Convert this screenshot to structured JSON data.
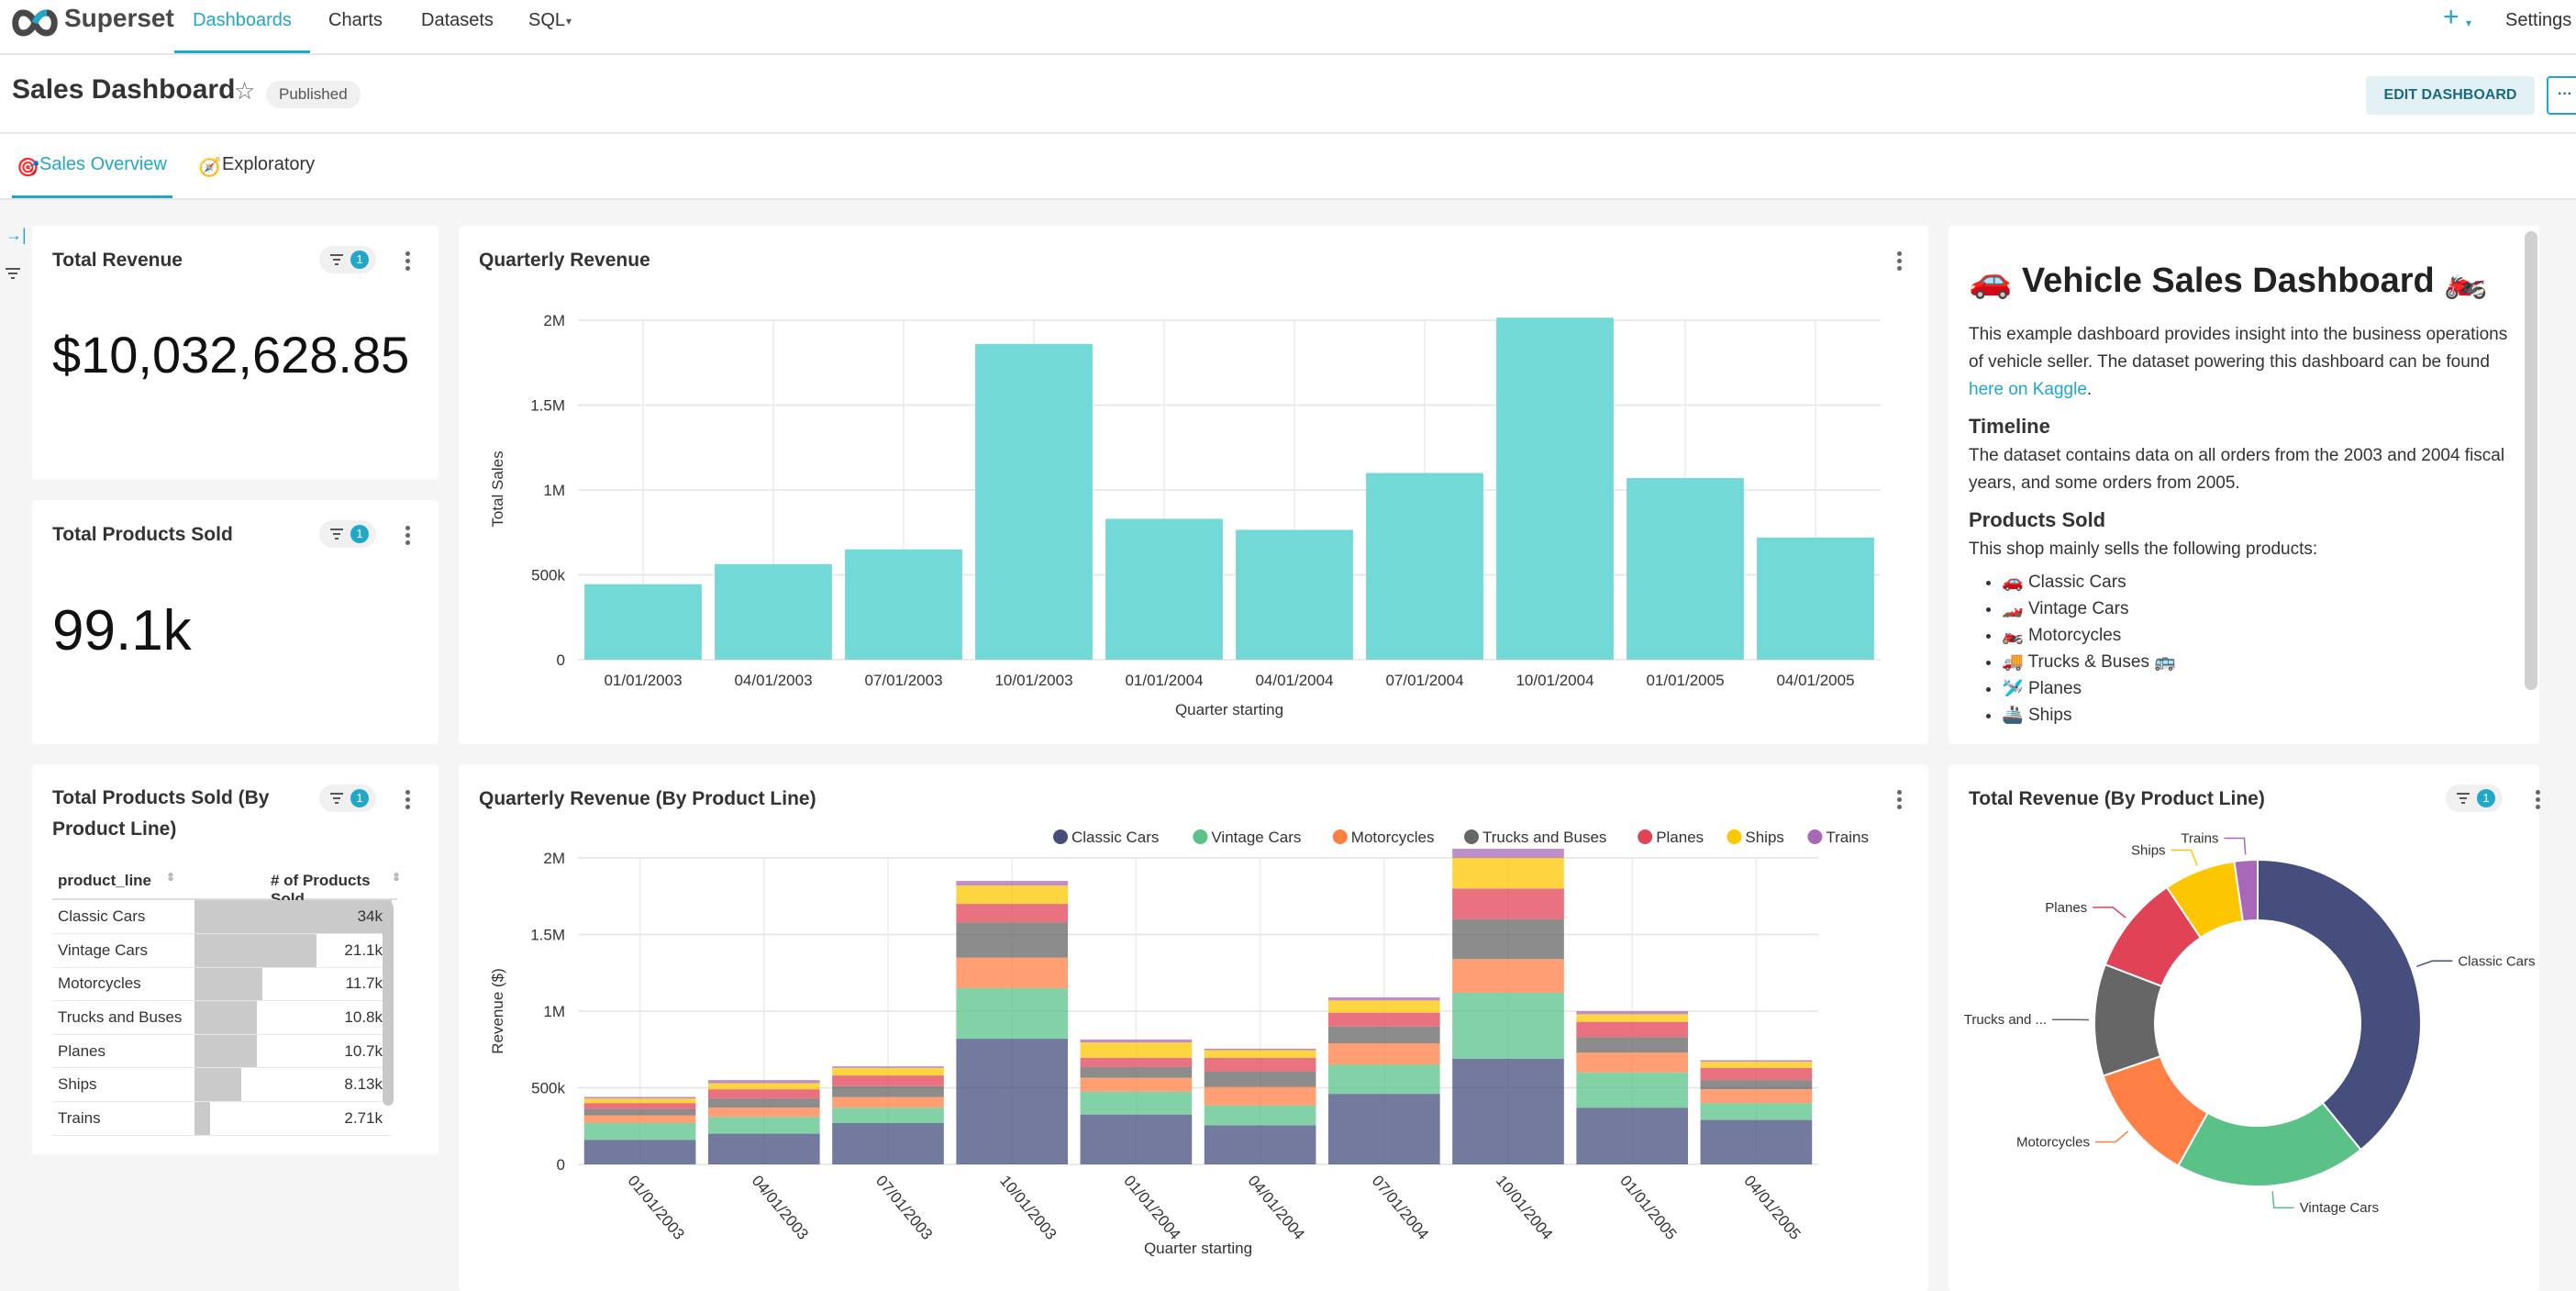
{
  "nav": {
    "brand": "Superset",
    "items": [
      "Dashboards",
      "Charts",
      "Datasets",
      "SQL"
    ],
    "plus": "+",
    "settings": "Settings"
  },
  "header": {
    "title": "Sales Dashboard",
    "status": "Published",
    "edit_label": "EDIT DASHBOARD",
    "more": "···"
  },
  "tabs": [
    {
      "label": "Sales Overview",
      "icon": "target-icon"
    },
    {
      "label": "Exploratory",
      "icon": "compass-icon"
    }
  ],
  "cards": {
    "total_revenue": {
      "title": "Total Revenue",
      "value": "$10,032,628.85",
      "filters": "1"
    },
    "total_products": {
      "title": "Total Products Sold",
      "value": "99.1k",
      "filters": "1"
    },
    "quarterly_revenue": {
      "title": "Quarterly Revenue"
    },
    "products_table": {
      "title": "Total Products Sold (By Product Line)",
      "filters": "1",
      "col1": "product_line",
      "col2": "# of Products Sold",
      "rows": [
        {
          "line": "Classic Cars",
          "value": "34k",
          "frac": 1.0
        },
        {
          "line": "Vintage Cars",
          "value": "21.1k",
          "frac": 0.62
        },
        {
          "line": "Motorcycles",
          "value": "11.7k",
          "frac": 0.344
        },
        {
          "line": "Trucks and Buses",
          "value": "10.8k",
          "frac": 0.318
        },
        {
          "line": "Planes",
          "value": "10.7k",
          "frac": 0.315
        },
        {
          "line": "Ships",
          "value": "8.13k",
          "frac": 0.239
        },
        {
          "line": "Trains",
          "value": "2.71k",
          "frac": 0.08
        }
      ]
    },
    "stacked": {
      "title": "Quarterly Revenue (By Product Line)"
    },
    "pie": {
      "title": "Total Revenue (By Product Line)",
      "filters": "1"
    },
    "markdown": {
      "title": "Vehicle Sales Dashboard",
      "intro": "This example dashboard provides insight into the business operations of vehicle seller. The dataset powering this dashboard can be found",
      "link": "here on Kaggle",
      "h_timeline": "Timeline",
      "p_timeline": "The dataset contains data on all orders from the 2003 and 2004 fiscal years, and some orders from 2005.",
      "h_products": "Products Sold",
      "p_products": "This shop mainly sells the following products:",
      "items": [
        "Classic Cars",
        "Vintage Cars",
        "Motorcycles",
        "Trucks & Buses",
        "Planes",
        "Ships"
      ]
    }
  },
  "colors": {
    "accent": "#20a7c9",
    "teal_bar": "#73d9d7",
    "series": [
      "#454e7c",
      "#5ac189",
      "#ff7f44",
      "#666666",
      "#e04355",
      "#fcc700",
      "#a868b7"
    ]
  },
  "chart_data": [
    {
      "type": "bar",
      "title": "Quarterly Revenue",
      "xlabel": "Quarter starting",
      "ylabel": "Total Sales",
      "categories": [
        "01/01/2003",
        "04/01/2003",
        "07/01/2003",
        "10/01/2003",
        "01/01/2004",
        "04/01/2004",
        "07/01/2004",
        "10/01/2004",
        "01/01/2005",
        "04/01/2005"
      ],
      "values": [
        445000,
        563000,
        650000,
        1860000,
        830000,
        765000,
        1100000,
        2015000,
        1070000,
        720000
      ],
      "ylim": [
        0,
        2000000
      ],
      "yticks": [
        "0",
        "500k",
        "1M",
        "1.5M",
        "2M"
      ]
    },
    {
      "type": "bar",
      "stacked": true,
      "title": "Quarterly Revenue (By Product Line)",
      "xlabel": "Quarter starting",
      "ylabel": "Revenue ($)",
      "categories": [
        "01/01/2003",
        "04/01/2003",
        "07/01/2003",
        "10/01/2003",
        "01/01/2004",
        "04/01/2004",
        "07/01/2004",
        "10/01/2004",
        "01/01/2005",
        "04/01/2005"
      ],
      "ylim": [
        0,
        2000000
      ],
      "yticks": [
        "0",
        "500k",
        "1M",
        "1.5M",
        "2M"
      ],
      "legend": "top",
      "series": [
        {
          "name": "Classic Cars",
          "values": [
            160000,
            200000,
            270000,
            820000,
            325000,
            255000,
            460000,
            690000,
            370000,
            290000
          ]
        },
        {
          "name": "Vintage Cars",
          "values": [
            110000,
            110000,
            100000,
            330000,
            150000,
            130000,
            190000,
            430000,
            230000,
            110000
          ]
        },
        {
          "name": "Motorcycles",
          "values": [
            50000,
            60000,
            70000,
            200000,
            90000,
            120000,
            140000,
            220000,
            130000,
            90000
          ]
        },
        {
          "name": "Trucks and Buses",
          "values": [
            40000,
            60000,
            70000,
            230000,
            70000,
            100000,
            110000,
            260000,
            100000,
            60000
          ]
        },
        {
          "name": "Planes",
          "values": [
            40000,
            60000,
            70000,
            120000,
            60000,
            90000,
            90000,
            200000,
            100000,
            80000
          ]
        },
        {
          "name": "Ships",
          "values": [
            30000,
            40000,
            50000,
            120000,
            100000,
            50000,
            80000,
            200000,
            50000,
            40000
          ]
        },
        {
          "name": "Trains",
          "values": [
            10000,
            20000,
            10000,
            30000,
            20000,
            10000,
            20000,
            60000,
            20000,
            10000
          ]
        }
      ]
    },
    {
      "type": "pie",
      "donut": true,
      "title": "Total Revenue (By Product Line)",
      "categories": [
        "Classic Cars",
        "Vintage Cars",
        "Motorcycles",
        "Trucks and ...",
        "Planes",
        "Ships",
        "Trains"
      ],
      "values": [
        3920000,
        1900000,
        1170000,
        1110000,
        980000,
        710000,
        230000
      ]
    }
  ]
}
